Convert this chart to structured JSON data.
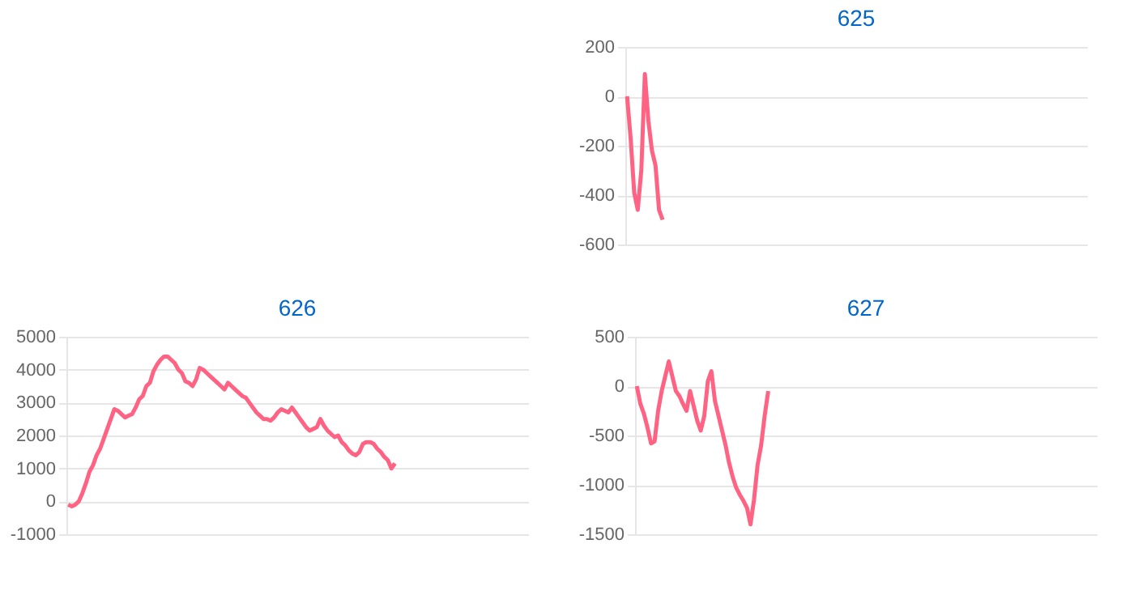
{
  "chart_data": [
    {
      "type": "line",
      "title": "625",
      "ylim": [
        -600,
        200
      ],
      "yticks": [
        -600,
        -400,
        -200,
        0,
        200
      ],
      "grid": "y",
      "tick_labels": "y",
      "categories": [
        null,
        null,
        null,
        null,
        null,
        null,
        null,
        null,
        null,
        null,
        null,
        null,
        null,
        null,
        null,
        null,
        null,
        null,
        null,
        null,
        null,
        null,
        null,
        null,
        null,
        null,
        null,
        null,
        null,
        null,
        null,
        null,
        null,
        null,
        null,
        null,
        null,
        null,
        null,
        null,
        null,
        null,
        null,
        null,
        null,
        null,
        null,
        null,
        null,
        null,
        null,
        null,
        null,
        null,
        null,
        null,
        null,
        null,
        null,
        null,
        null,
        null,
        null,
        null,
        null,
        null,
        null,
        null,
        null,
        null,
        null,
        null,
        null,
        null,
        null,
        null,
        null,
        null,
        null,
        null,
        null,
        null,
        null,
        null,
        null,
        null,
        null,
        null,
        null,
        null,
        null,
        null,
        null,
        null,
        null,
        null,
        null,
        null,
        null,
        null,
        null,
        null,
        null,
        null,
        null,
        null,
        null,
        null,
        null,
        null,
        null,
        null,
        null,
        null,
        null,
        null,
        null,
        null,
        null,
        null,
        null,
        null,
        null,
        null,
        null,
        null,
        null,
        null,
        null,
        null
      ],
      "series": [
        {
          "color": "#ff6384",
          "values": [
            0,
            -170,
            -390,
            -460,
            -300,
            90,
            -100,
            -220,
            -280,
            -460,
            -500,
            null,
            null,
            null,
            null,
            null,
            null,
            null,
            null,
            null,
            null,
            null,
            null,
            null,
            null,
            null,
            null,
            null,
            null,
            null,
            null,
            null,
            null,
            null,
            null,
            null,
            null,
            null,
            null,
            null,
            null,
            null,
            null,
            null,
            null,
            null,
            null,
            null,
            null,
            null,
            null,
            null,
            null,
            null,
            null,
            null,
            null,
            null,
            null,
            null,
            null,
            null,
            null,
            null,
            null,
            null,
            null,
            null,
            null,
            null,
            null,
            null,
            null,
            null,
            null,
            null,
            null,
            null,
            null,
            null,
            null,
            null,
            null,
            null,
            null,
            null,
            null,
            null,
            null,
            null,
            null,
            null,
            null,
            null,
            null,
            null,
            null,
            null,
            null,
            null,
            null,
            null,
            null,
            null,
            null,
            null,
            null,
            null,
            null,
            null,
            null,
            null,
            null,
            null,
            null,
            null,
            null,
            null,
            null,
            null,
            null,
            null,
            null,
            null,
            null,
            null,
            null,
            null,
            null,
            null
          ]
        }
      ]
    },
    {
      "type": "line",
      "title": "626",
      "ylim": [
        -1000,
        5000
      ],
      "yticks": [
        -1000,
        0,
        1000,
        2000,
        3000,
        4000,
        5000
      ],
      "grid": "y",
      "tick_labels": "y",
      "categories": [
        null,
        null,
        null,
        null,
        null,
        null,
        null,
        null,
        null,
        null,
        null,
        null,
        null,
        null,
        null,
        null,
        null,
        null,
        null,
        null,
        null,
        null,
        null,
        null,
        null,
        null,
        null,
        null,
        null,
        null,
        null,
        null,
        null,
        null,
        null,
        null,
        null,
        null,
        null,
        null,
        null,
        null,
        null,
        null,
        null,
        null,
        null,
        null,
        null,
        null,
        null,
        null,
        null,
        null,
        null,
        null,
        null,
        null,
        null,
        null,
        null,
        null,
        null,
        null,
        null,
        null,
        null,
        null,
        null,
        null,
        null,
        null,
        null,
        null,
        null,
        null,
        null,
        null,
        null,
        null,
        null,
        null,
        null,
        null,
        null,
        null,
        null,
        null,
        null,
        null,
        null,
        null,
        null,
        null,
        null,
        null,
        null,
        null,
        null,
        null,
        null,
        null,
        null,
        null,
        null,
        null,
        null,
        null,
        null,
        null,
        null,
        null,
        null,
        null,
        null,
        null,
        null,
        null,
        null,
        null,
        null,
        null,
        null,
        null,
        null,
        null,
        null,
        null,
        null,
        null
      ],
      "series": [
        {
          "color": "#ff6384",
          "values": [
            -100,
            -150,
            -100,
            0,
            250,
            550,
            900,
            1100,
            1400,
            1600,
            1900,
            2200,
            2500,
            2800,
            2750,
            2650,
            2550,
            2600,
            2650,
            2850,
            3100,
            3200,
            3500,
            3600,
            3950,
            4150,
            4300,
            4400,
            4400,
            4300,
            4200,
            4000,
            3900,
            3650,
            3600,
            3500,
            3700,
            4050,
            4000,
            3900,
            3800,
            3700,
            3600,
            3500,
            3400,
            3600,
            3500,
            3400,
            3300,
            3200,
            3150,
            3000,
            2850,
            2700,
            2600,
            2500,
            2500,
            2450,
            2550,
            2700,
            2800,
            2750,
            2700,
            2850,
            2700,
            2550,
            2400,
            2250,
            2150,
            2200,
            2250,
            2500,
            2300,
            2150,
            2050,
            1950,
            2000,
            1800,
            1700,
            1550,
            1450,
            1400,
            1500,
            1750,
            1800,
            1800,
            1750,
            1600,
            1500,
            1350,
            1250,
            1000,
            1150,
            null,
            null,
            null,
            null,
            null,
            null,
            null,
            null,
            null,
            null,
            null,
            null,
            null,
            null,
            null,
            null,
            null,
            null,
            null,
            null,
            null,
            null,
            null,
            null,
            null,
            null,
            null,
            null,
            null,
            null,
            null,
            null,
            null,
            null,
            null,
            null,
            null
          ]
        }
      ]
    },
    {
      "type": "line",
      "title": "627",
      "ylim": [
        -1500,
        500
      ],
      "yticks": [
        -1500,
        -1000,
        -500,
        0,
        500
      ],
      "grid": "y",
      "tick_labels": "y",
      "categories": [
        null,
        null,
        null,
        null,
        null,
        null,
        null,
        null,
        null,
        null,
        null,
        null,
        null,
        null,
        null,
        null,
        null,
        null,
        null,
        null,
        null,
        null,
        null,
        null,
        null,
        null,
        null,
        null,
        null,
        null,
        null,
        null,
        null,
        null,
        null,
        null,
        null,
        null,
        null,
        null,
        null,
        null,
        null,
        null,
        null,
        null,
        null,
        null,
        null,
        null,
        null,
        null,
        null,
        null,
        null,
        null,
        null,
        null,
        null,
        null,
        null,
        null,
        null,
        null,
        null,
        null,
        null,
        null,
        null,
        null,
        null,
        null,
        null,
        null,
        null,
        null,
        null,
        null,
        null,
        null,
        null,
        null,
        null,
        null,
        null,
        null,
        null,
        null,
        null,
        null,
        null,
        null,
        null,
        null,
        null,
        null,
        null,
        null,
        null,
        null,
        null,
        null,
        null,
        null,
        null,
        null,
        null,
        null,
        null,
        null,
        null,
        null,
        null,
        null,
        null,
        null,
        null,
        null,
        null,
        null,
        null,
        null,
        null,
        null,
        null,
        null,
        null,
        null,
        null,
        null
      ],
      "series": [
        {
          "color": "#ff6384",
          "values": [
            0,
            -180,
            -280,
            -420,
            -580,
            -560,
            -250,
            -50,
            100,
            250,
            100,
            -50,
            -100,
            -180,
            -250,
            -50,
            -200,
            -350,
            -450,
            -300,
            50,
            150,
            -150,
            -300,
            -450,
            -600,
            -780,
            -920,
            -1030,
            -1100,
            -1160,
            -1230,
            -1400,
            -1150,
            -800,
            -600,
            -300,
            -50,
            null,
            null,
            null,
            null,
            null,
            null,
            null,
            null,
            null,
            null,
            null,
            null,
            null,
            null,
            null,
            null,
            null,
            null,
            null,
            null,
            null,
            null,
            null,
            null,
            null,
            null,
            null,
            null,
            null,
            null,
            null,
            null,
            null,
            null,
            null,
            null,
            null,
            null,
            null,
            null,
            null,
            null,
            null,
            null,
            null,
            null,
            null,
            null,
            null,
            null,
            null,
            null,
            null,
            null,
            null,
            null,
            null,
            null,
            null,
            null,
            null,
            null,
            null,
            null,
            null,
            null,
            null,
            null,
            null,
            null,
            null,
            null,
            null,
            null,
            null,
            null,
            null,
            null,
            null,
            null,
            null,
            null,
            null,
            null,
            null,
            null,
            null,
            null,
            null,
            null,
            null,
            null
          ]
        }
      ]
    }
  ]
}
